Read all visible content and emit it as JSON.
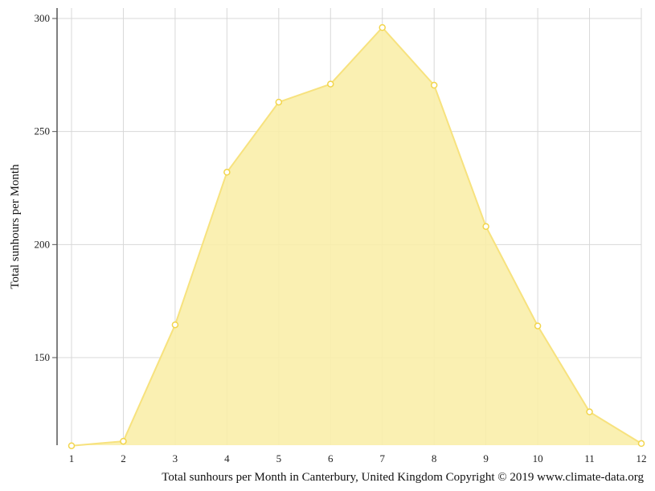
{
  "chart_data": {
    "type": "area",
    "x": [
      1,
      2,
      3,
      4,
      5,
      6,
      7,
      8,
      9,
      10,
      11,
      12
    ],
    "categories": [
      "1",
      "2",
      "3",
      "4",
      "5",
      "6",
      "7",
      "8",
      "9",
      "10",
      "11",
      "12"
    ],
    "series": [
      {
        "values": [
          111,
          113,
          164.5,
          232,
          263,
          271,
          296,
          270.5,
          208,
          164,
          126,
          112
        ],
        "color": "#f5d84a"
      }
    ],
    "ylabel": "Total sunhours per Month",
    "xlabel": "",
    "ylim": [
      110,
      302
    ],
    "yticks": [
      150,
      200,
      250,
      300
    ],
    "ytick_labels": [
      "150",
      "200",
      "250",
      "300"
    ],
    "caption": "Total sunhours per Month in Canterbury, United Kingdom Copyright © 2019 www.climate-data.org",
    "grid": true,
    "colors": {
      "area_fill": "#f9eeaa",
      "line": "#f7e27e",
      "marker_fill": "#ffffff",
      "marker_stroke": "#f2d54d",
      "grid": "#d8d8d8",
      "axis": "#555555"
    }
  }
}
